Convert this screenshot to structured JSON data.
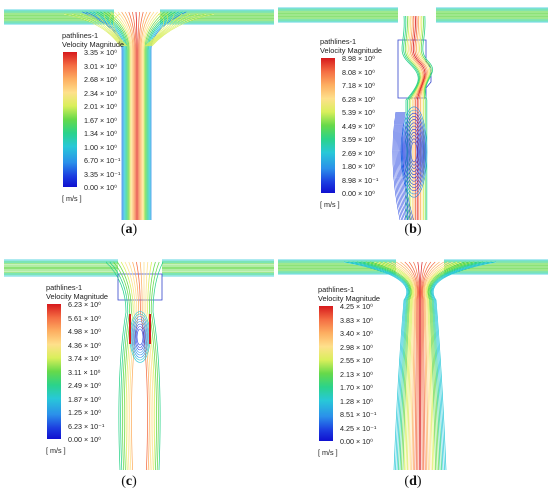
{
  "panels": [
    {
      "id": "a",
      "caption": "a",
      "legend_title": [
        "pathlines-1",
        "Velocity Magnitude"
      ],
      "ticks": [
        "3.35 × 10⁰",
        "3.01 × 10⁰",
        "2.68 × 10⁰",
        "2.34 × 10⁰",
        "2.01 × 10⁰",
        "1.67 × 10⁰",
        "1.34 × 10⁰",
        "1.00 × 10⁰",
        "6.70 × 10⁻¹",
        "3.35 × 10⁻¹",
        "0.00 × 10⁰"
      ],
      "unit": "[ m/s ]",
      "variant": "jet-straight"
    },
    {
      "id": "b",
      "caption": "b",
      "legend_title": [
        "pathlines-1",
        "Velocity Magnitude"
      ],
      "ticks": [
        "8.98 × 10⁰",
        "8.08 × 10⁰",
        "7.18 × 10⁰",
        "6.28 × 10⁰",
        "5.39 × 10⁰",
        "4.49 × 10⁰",
        "3.59 × 10⁰",
        "2.69 × 10⁰",
        "1.80 × 10⁰",
        "8.98 × 10⁻¹",
        "0.00 × 10⁰"
      ],
      "unit": "[ m/s ]",
      "variant": "valve-recirc"
    },
    {
      "id": "c",
      "caption": "c",
      "legend_title": [
        "pathlines-1",
        "Velocity Magnitude"
      ],
      "ticks": [
        "6.23 × 10⁰",
        "5.61 × 10⁰",
        "4.98 × 10⁰",
        "4.36 × 10⁰",
        "3.74 × 10⁰",
        "3.11 × 10⁰",
        "2.49 × 10⁰",
        "1.87 × 10⁰",
        "1.25 × 10⁰",
        "6.23 × 10⁻¹",
        "0.00 × 10⁰"
      ],
      "unit": "[ m/s ]",
      "variant": "valve-split"
    },
    {
      "id": "d",
      "caption": "d",
      "legend_title": [
        "pathlines-1",
        "Velocity Magnitude"
      ],
      "ticks": [
        "4.25 × 10⁰",
        "3.83 × 10⁰",
        "3.40 × 10⁰",
        "2.98 × 10⁰",
        "2.55 × 10⁰",
        "2.13 × 10⁰",
        "1.70 × 10⁰",
        "1.28 × 10⁰",
        "8.51 × 10⁻¹",
        "4.25 × 10⁻¹",
        "0.00 × 10⁰"
      ],
      "unit": "[ m/s ]",
      "variant": "jet-wide"
    }
  ]
}
